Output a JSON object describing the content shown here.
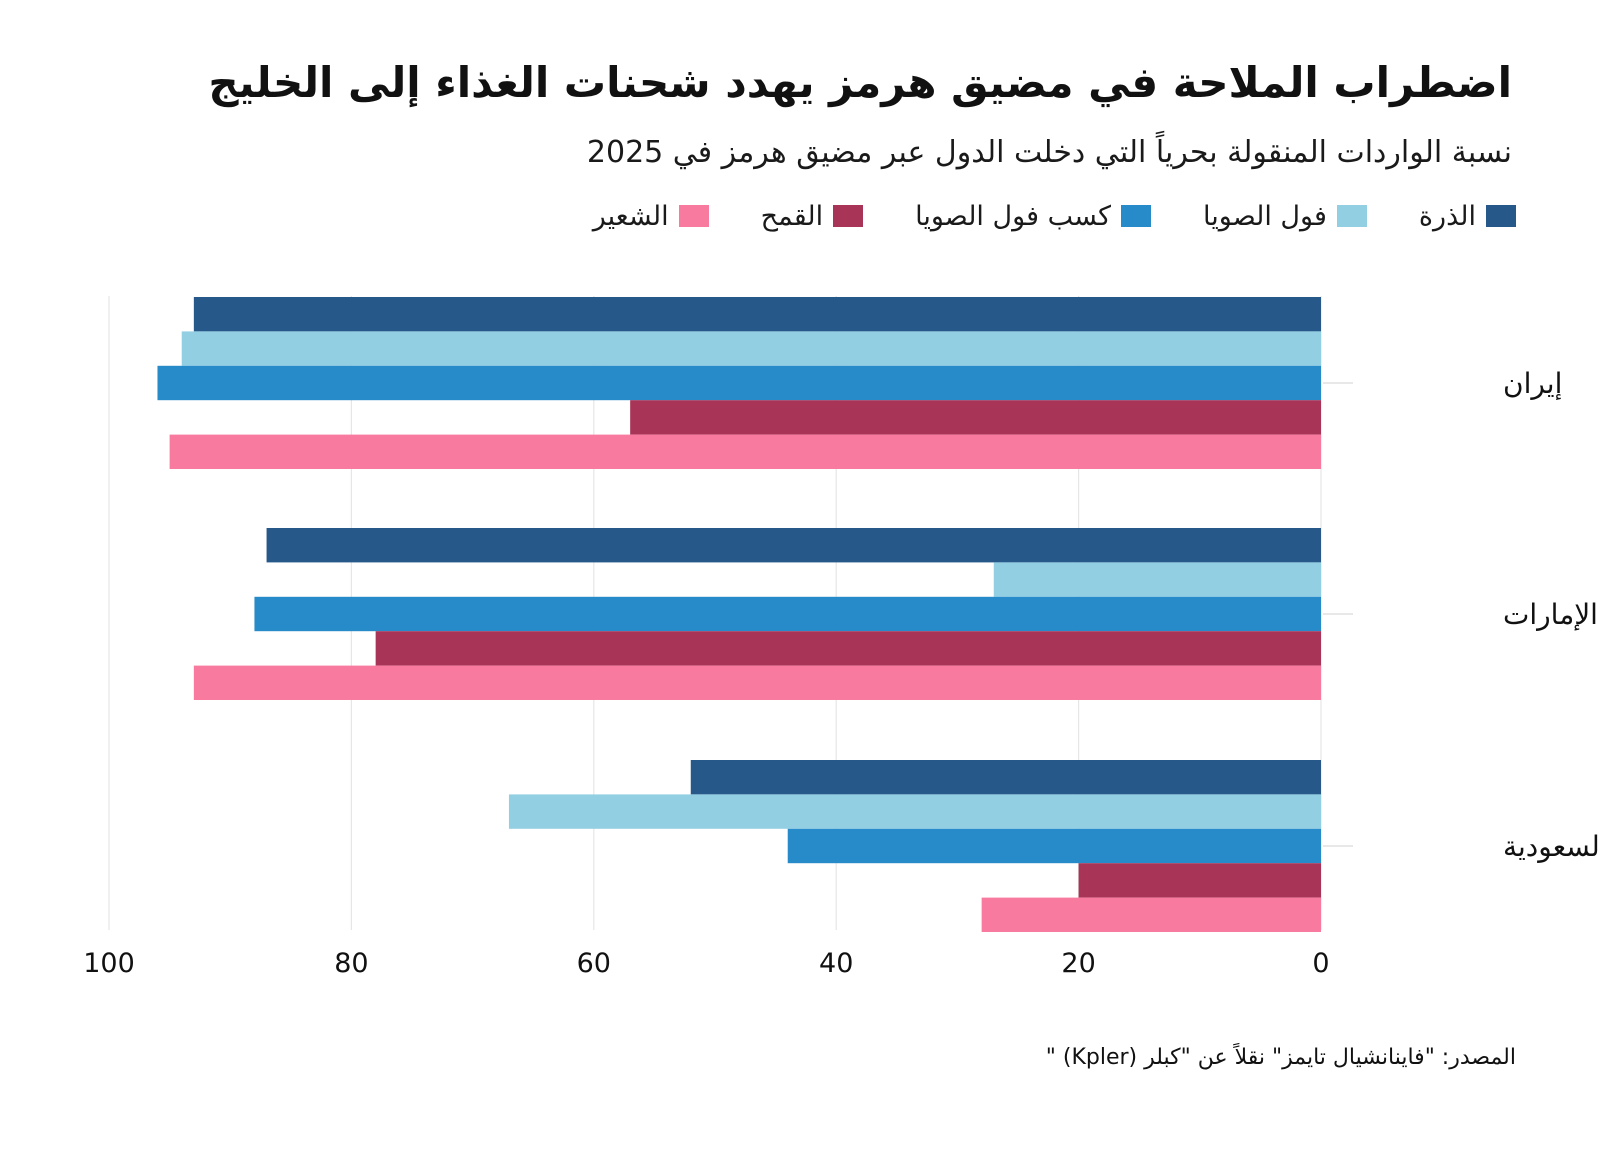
{
  "chart_data": {
    "type": "bar",
    "orientation": "horizontal",
    "title": "اضطراب الملاحة في مضيق هرمز يهدد شحنات الغذاء إلى الخليج",
    "subtitle": "نسبة الواردات المنقولة بحرياً التي دخلت الدول عبر مضيق هرمز في 2025",
    "categories": [
      "إيران",
      "الإمارات",
      "السعودية"
    ],
    "series": [
      {
        "name": "الذرة",
        "color": "#27588a",
        "values": [
          93,
          87,
          52
        ]
      },
      {
        "name": "فول الصويا",
        "color": "#92cfe3",
        "values": [
          94,
          27,
          67
        ]
      },
      {
        "name": "كسب فول الصويا",
        "color": "#268bc8",
        "values": [
          96,
          88,
          44
        ]
      },
      {
        "name": "القمح",
        "color": "#a83458",
        "values": [
          57,
          78,
          20
        ]
      },
      {
        "name": "الشعير",
        "color": "#f97a9f",
        "values": [
          95,
          93,
          28
        ]
      }
    ],
    "xlim": [
      0,
      100
    ],
    "xticks": [
      "100",
      "80",
      "60",
      "40",
      "20",
      "0"
    ],
    "xtick_values": [
      100,
      80,
      60,
      40,
      20,
      0
    ],
    "x_direction": "reversed",
    "grid": true,
    "legend_position": "top",
    "source": "المصدر: \"فاينانشيال تايمز\" نقلاً عن \"كبلر (Kpler) \""
  }
}
